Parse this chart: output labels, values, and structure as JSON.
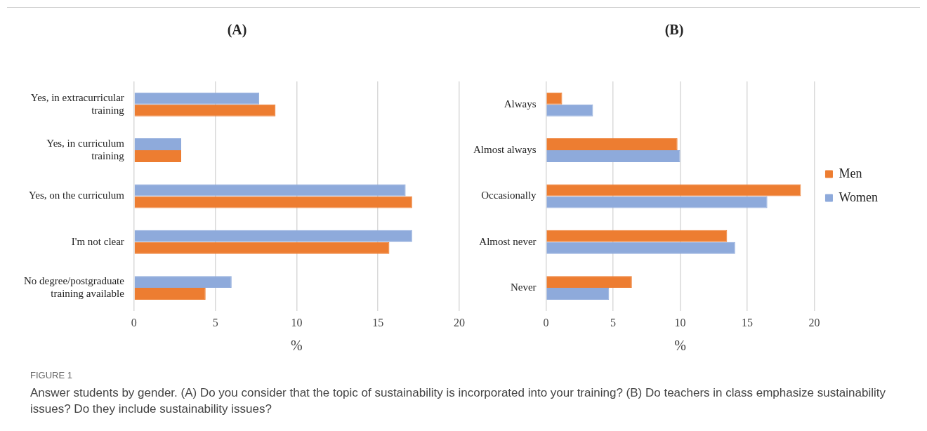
{
  "chart_data": [
    {
      "type": "bar",
      "orientation": "horizontal",
      "title": "(A)",
      "xlabel": "%",
      "categories": [
        "Yes, in extracurricular training",
        "Yes, in curriculum training",
        "Yes, on the curriculum",
        "I'm not clear",
        "No degree/postgraduate training available"
      ],
      "series": [
        {
          "color": "#8eaadb",
          "values": [
            7.7,
            2.9,
            16.7,
            17.1,
            6
          ]
        },
        {
          "color": "#ed7d31",
          "values": [
            8.7,
            2.9,
            17.1,
            15.7,
            4.4
          ]
        }
      ],
      "xlim": [
        0,
        20
      ],
      "xticks": [
        0,
        5,
        10,
        15,
        20
      ],
      "grid": "x",
      "annotations": [
        "FIGURE 1",
        "Answer students by gender. (A) Do you consider that the topic of sustainability is incorporated into your training? (B) Do teachers in class emphasize sustainability issues? Do they include sustainability issues?"
      ]
    },
    {
      "type": "bar",
      "orientation": "horizontal",
      "title": "(B)",
      "xlabel": "%",
      "categories": [
        "Always",
        "Almost always",
        "Occasionally",
        "Almost never",
        "Never"
      ],
      "series": [
        {
          "name": "Men",
          "color": "#ed7d31",
          "values": [
            1.2,
            9.8,
            19,
            13.5,
            6.4
          ]
        },
        {
          "name": "Women",
          "color": "#8eaadb",
          "values": [
            3.5,
            10,
            16.5,
            14.1,
            4.7
          ]
        }
      ],
      "xlim": [
        0,
        20
      ],
      "xticks": [
        0,
        5,
        10,
        15,
        20
      ],
      "grid": "x",
      "legend": "right"
    }
  ]
}
